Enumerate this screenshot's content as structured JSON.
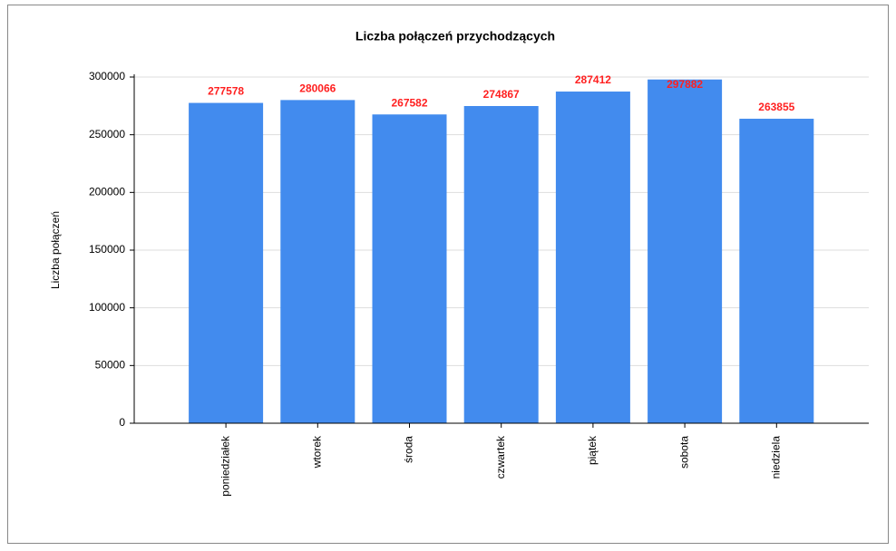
{
  "chart_data": {
    "type": "bar",
    "title": "Liczba połączeń przychodzących",
    "ylabel": "Liczba połączeń",
    "categories": [
      "poniedziałek",
      "wtorek",
      "środa",
      "czwartek",
      "piątek",
      "sobota",
      "niedziela"
    ],
    "values": [
      277578,
      280066,
      267582,
      274867,
      287412,
      297882,
      263855
    ],
    "color": "#428bee",
    "label_color": "#ff2020",
    "ylim": [
      0,
      300000
    ],
    "yticks": [
      0,
      50000,
      100000,
      150000,
      200000,
      250000,
      300000
    ],
    "grid": true
  }
}
